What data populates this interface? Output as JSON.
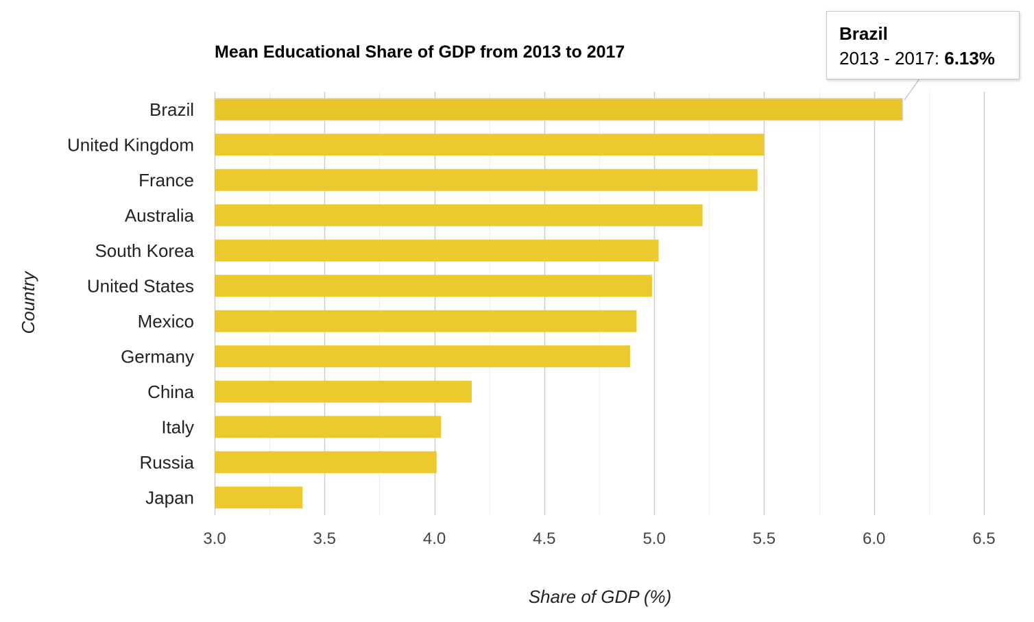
{
  "chart_data": {
    "type": "bar",
    "orientation": "horizontal",
    "title": "Mean Educational Share of GDP from 2013 to 2017",
    "xlabel": "Share of GDP (%)",
    "ylabel": "Country",
    "categories": [
      "Brazil",
      "United Kingdom",
      "France",
      "Australia",
      "South Korea",
      "United States",
      "Mexico",
      "Germany",
      "China",
      "Italy",
      "Russia",
      "Japan"
    ],
    "values": [
      6.13,
      5.5,
      5.47,
      5.22,
      5.02,
      4.99,
      4.92,
      4.89,
      4.17,
      4.03,
      4.01,
      3.4
    ],
    "xlim": [
      3.0,
      6.5
    ],
    "xticks": [
      "3.0",
      "3.5",
      "4.0",
      "4.5",
      "5.0",
      "5.5",
      "6.0",
      "6.5"
    ],
    "grid": true,
    "bar_color": "#ecc92f",
    "highlight_bar_color": "#e8c52a"
  },
  "tooltip": {
    "title": "Brazil",
    "series_label": "2013 - 2017: ",
    "value": "6.13%"
  }
}
